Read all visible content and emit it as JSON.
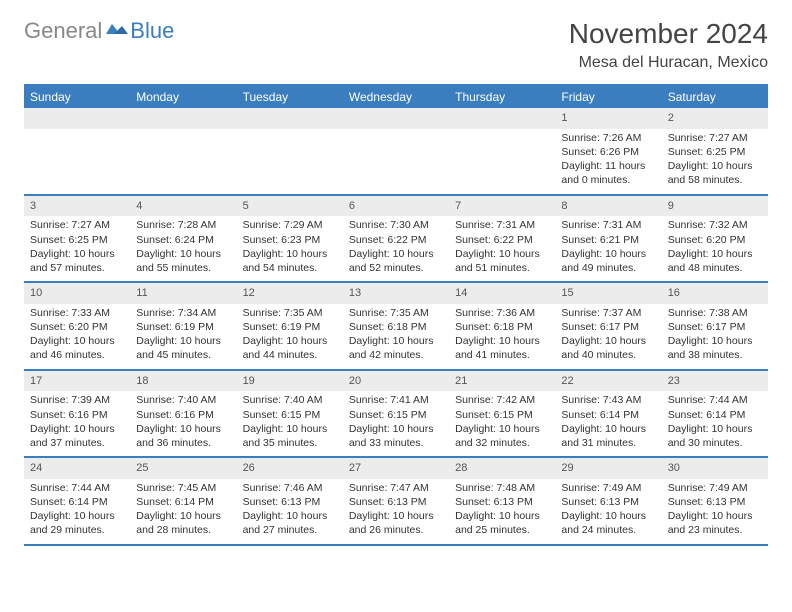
{
  "brand": {
    "part1": "General",
    "part2": "Blue"
  },
  "title": "November 2024",
  "location": "Mesa del Huracan, Mexico",
  "colors": {
    "accent": "#3b7ec0",
    "row_band": "#ececec",
    "text": "#333333",
    "muted": "#888888",
    "bg": "#ffffff"
  },
  "dow": [
    "Sunday",
    "Monday",
    "Tuesday",
    "Wednesday",
    "Thursday",
    "Friday",
    "Saturday"
  ],
  "weeks": [
    [
      null,
      null,
      null,
      null,
      null,
      {
        "n": "1",
        "sr": "Sunrise: 7:26 AM",
        "ss": "Sunset: 6:26 PM",
        "dl": "Daylight: 11 hours and 0 minutes."
      },
      {
        "n": "2",
        "sr": "Sunrise: 7:27 AM",
        "ss": "Sunset: 6:25 PM",
        "dl": "Daylight: 10 hours and 58 minutes."
      }
    ],
    [
      {
        "n": "3",
        "sr": "Sunrise: 7:27 AM",
        "ss": "Sunset: 6:25 PM",
        "dl": "Daylight: 10 hours and 57 minutes."
      },
      {
        "n": "4",
        "sr": "Sunrise: 7:28 AM",
        "ss": "Sunset: 6:24 PM",
        "dl": "Daylight: 10 hours and 55 minutes."
      },
      {
        "n": "5",
        "sr": "Sunrise: 7:29 AM",
        "ss": "Sunset: 6:23 PM",
        "dl": "Daylight: 10 hours and 54 minutes."
      },
      {
        "n": "6",
        "sr": "Sunrise: 7:30 AM",
        "ss": "Sunset: 6:22 PM",
        "dl": "Daylight: 10 hours and 52 minutes."
      },
      {
        "n": "7",
        "sr": "Sunrise: 7:31 AM",
        "ss": "Sunset: 6:22 PM",
        "dl": "Daylight: 10 hours and 51 minutes."
      },
      {
        "n": "8",
        "sr": "Sunrise: 7:31 AM",
        "ss": "Sunset: 6:21 PM",
        "dl": "Daylight: 10 hours and 49 minutes."
      },
      {
        "n": "9",
        "sr": "Sunrise: 7:32 AM",
        "ss": "Sunset: 6:20 PM",
        "dl": "Daylight: 10 hours and 48 minutes."
      }
    ],
    [
      {
        "n": "10",
        "sr": "Sunrise: 7:33 AM",
        "ss": "Sunset: 6:20 PM",
        "dl": "Daylight: 10 hours and 46 minutes."
      },
      {
        "n": "11",
        "sr": "Sunrise: 7:34 AM",
        "ss": "Sunset: 6:19 PM",
        "dl": "Daylight: 10 hours and 45 minutes."
      },
      {
        "n": "12",
        "sr": "Sunrise: 7:35 AM",
        "ss": "Sunset: 6:19 PM",
        "dl": "Daylight: 10 hours and 44 minutes."
      },
      {
        "n": "13",
        "sr": "Sunrise: 7:35 AM",
        "ss": "Sunset: 6:18 PM",
        "dl": "Daylight: 10 hours and 42 minutes."
      },
      {
        "n": "14",
        "sr": "Sunrise: 7:36 AM",
        "ss": "Sunset: 6:18 PM",
        "dl": "Daylight: 10 hours and 41 minutes."
      },
      {
        "n": "15",
        "sr": "Sunrise: 7:37 AM",
        "ss": "Sunset: 6:17 PM",
        "dl": "Daylight: 10 hours and 40 minutes."
      },
      {
        "n": "16",
        "sr": "Sunrise: 7:38 AM",
        "ss": "Sunset: 6:17 PM",
        "dl": "Daylight: 10 hours and 38 minutes."
      }
    ],
    [
      {
        "n": "17",
        "sr": "Sunrise: 7:39 AM",
        "ss": "Sunset: 6:16 PM",
        "dl": "Daylight: 10 hours and 37 minutes."
      },
      {
        "n": "18",
        "sr": "Sunrise: 7:40 AM",
        "ss": "Sunset: 6:16 PM",
        "dl": "Daylight: 10 hours and 36 minutes."
      },
      {
        "n": "19",
        "sr": "Sunrise: 7:40 AM",
        "ss": "Sunset: 6:15 PM",
        "dl": "Daylight: 10 hours and 35 minutes."
      },
      {
        "n": "20",
        "sr": "Sunrise: 7:41 AM",
        "ss": "Sunset: 6:15 PM",
        "dl": "Daylight: 10 hours and 33 minutes."
      },
      {
        "n": "21",
        "sr": "Sunrise: 7:42 AM",
        "ss": "Sunset: 6:15 PM",
        "dl": "Daylight: 10 hours and 32 minutes."
      },
      {
        "n": "22",
        "sr": "Sunrise: 7:43 AM",
        "ss": "Sunset: 6:14 PM",
        "dl": "Daylight: 10 hours and 31 minutes."
      },
      {
        "n": "23",
        "sr": "Sunrise: 7:44 AM",
        "ss": "Sunset: 6:14 PM",
        "dl": "Daylight: 10 hours and 30 minutes."
      }
    ],
    [
      {
        "n": "24",
        "sr": "Sunrise: 7:44 AM",
        "ss": "Sunset: 6:14 PM",
        "dl": "Daylight: 10 hours and 29 minutes."
      },
      {
        "n": "25",
        "sr": "Sunrise: 7:45 AM",
        "ss": "Sunset: 6:14 PM",
        "dl": "Daylight: 10 hours and 28 minutes."
      },
      {
        "n": "26",
        "sr": "Sunrise: 7:46 AM",
        "ss": "Sunset: 6:13 PM",
        "dl": "Daylight: 10 hours and 27 minutes."
      },
      {
        "n": "27",
        "sr": "Sunrise: 7:47 AM",
        "ss": "Sunset: 6:13 PM",
        "dl": "Daylight: 10 hours and 26 minutes."
      },
      {
        "n": "28",
        "sr": "Sunrise: 7:48 AM",
        "ss": "Sunset: 6:13 PM",
        "dl": "Daylight: 10 hours and 25 minutes."
      },
      {
        "n": "29",
        "sr": "Sunrise: 7:49 AM",
        "ss": "Sunset: 6:13 PM",
        "dl": "Daylight: 10 hours and 24 minutes."
      },
      {
        "n": "30",
        "sr": "Sunrise: 7:49 AM",
        "ss": "Sunset: 6:13 PM",
        "dl": "Daylight: 10 hours and 23 minutes."
      }
    ]
  ]
}
